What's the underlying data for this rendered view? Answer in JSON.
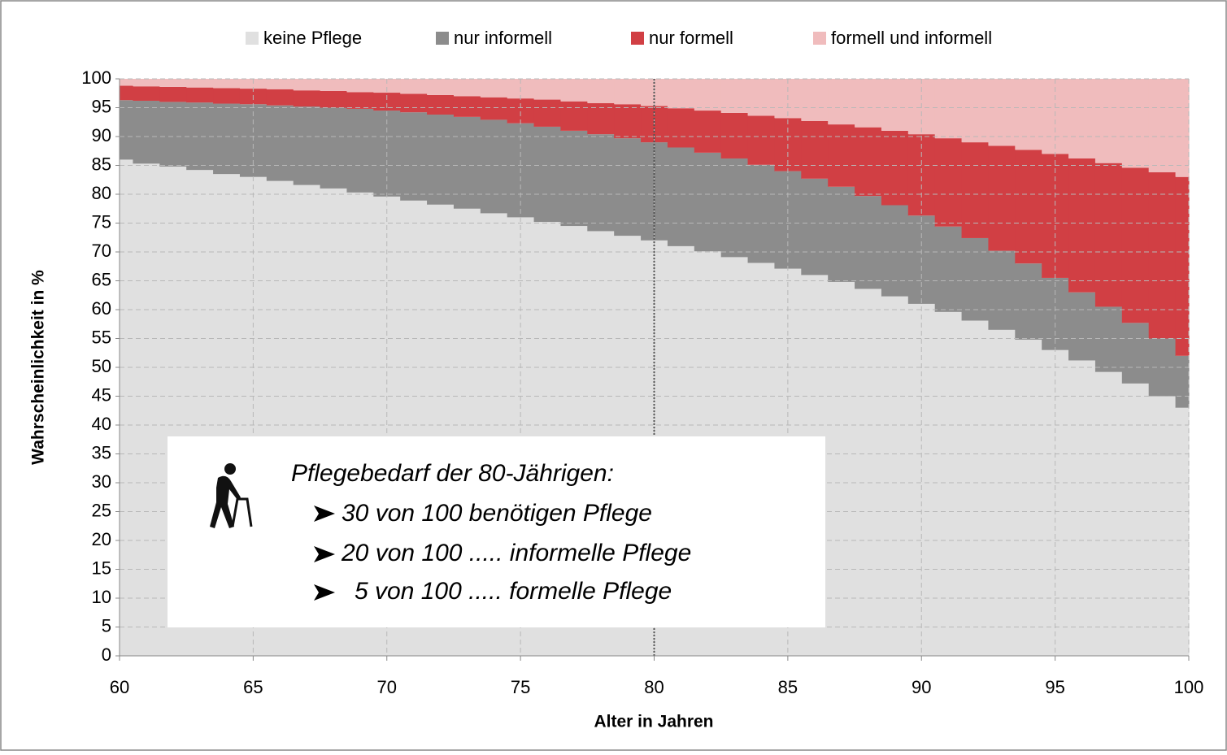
{
  "chart_data": {
    "type": "stacked_step_area",
    "x": [
      60,
      61,
      62,
      63,
      64,
      65,
      66,
      67,
      68,
      69,
      70,
      71,
      72,
      73,
      74,
      75,
      76,
      77,
      78,
      79,
      80,
      81,
      82,
      83,
      84,
      85,
      86,
      87,
      88,
      89,
      90,
      91,
      92,
      93,
      94,
      95,
      96,
      97,
      98,
      99,
      100
    ],
    "series": [
      {
        "name": "keine Pflege",
        "color": "#e0e0e0",
        "values": [
          86,
          85.3,
          84.8,
          84.2,
          83.5,
          83,
          82.3,
          81.6,
          81,
          80.3,
          79.6,
          78.9,
          78.2,
          77.5,
          76.7,
          76,
          75.2,
          74.5,
          73.6,
          72.8,
          72,
          71,
          70.1,
          69.1,
          68.1,
          67.1,
          66,
          64.8,
          63.6,
          62.3,
          61,
          59.6,
          58.1,
          56.5,
          54.8,
          53,
          51.2,
          49.2,
          47.2,
          45,
          43
        ]
      },
      {
        "name": "nur informell",
        "color": "#8c8c8c",
        "values": [
          10.3,
          10.9,
          11.2,
          11.7,
          12.2,
          12.6,
          13.1,
          13.6,
          14,
          14.5,
          14.9,
          15.3,
          15.6,
          15.9,
          16.2,
          16.3,
          16.5,
          16.5,
          16.8,
          16.9,
          17,
          17.1,
          17.1,
          17.1,
          17,
          16.9,
          16.7,
          16.5,
          16.1,
          15.8,
          15.3,
          14.8,
          14.3,
          13.7,
          13.2,
          12.5,
          11.8,
          11.3,
          10.5,
          10,
          9
        ]
      },
      {
        "name": "nur formell",
        "color": "#d13f44",
        "values": [
          2.5,
          2.5,
          2.6,
          2.6,
          2.7,
          2.7,
          2.8,
          2.8,
          2.9,
          2.9,
          3.1,
          3.2,
          3.4,
          3.6,
          3.9,
          4.3,
          4.7,
          5.1,
          5.4,
          5.9,
          6.3,
          6.8,
          7.3,
          7.9,
          8.5,
          9.2,
          10,
          10.8,
          11.9,
          12.9,
          14.1,
          15.3,
          16.6,
          18.2,
          19.7,
          21.5,
          23.2,
          24.9,
          26.9,
          28.8,
          31
        ]
      },
      {
        "name": "formell und informell",
        "color": "#f0bcbd",
        "values": [
          1.2,
          1.3,
          1.4,
          1.5,
          1.6,
          1.7,
          1.8,
          2.0,
          2.1,
          2.3,
          2.4,
          2.6,
          2.8,
          3.0,
          3.2,
          3.4,
          3.6,
          3.9,
          4.2,
          4.4,
          4.7,
          5.1,
          5.5,
          5.9,
          6.4,
          6.8,
          7.3,
          7.9,
          8.4,
          9.0,
          9.6,
          10.3,
          11.0,
          11.6,
          12.3,
          13,
          13.8,
          14.6,
          15.4,
          16.2,
          17
        ]
      }
    ],
    "xlim": [
      60,
      100
    ],
    "xticks": [
      60,
      65,
      70,
      75,
      80,
      85,
      90,
      95,
      100
    ],
    "ylim": [
      0,
      100
    ],
    "yticks": [
      0,
      5,
      10,
      15,
      20,
      25,
      30,
      35,
      40,
      45,
      50,
      55,
      60,
      65,
      70,
      75,
      80,
      85,
      90,
      95,
      100
    ],
    "grid": true,
    "legend": "top",
    "marker_line_x": 80,
    "xlabel": "Alter in Jahren",
    "ylabel": "Wahrscheinlichkeit in %",
    "annotation": {
      "title": "Pflegebedarf der 80-Jährigen:",
      "items": [
        "30 von 100 benötigen Pflege",
        "20 von 100 ..... informelle Pflege",
        "5 von 100 ..... formelle Pflege"
      ]
    }
  }
}
